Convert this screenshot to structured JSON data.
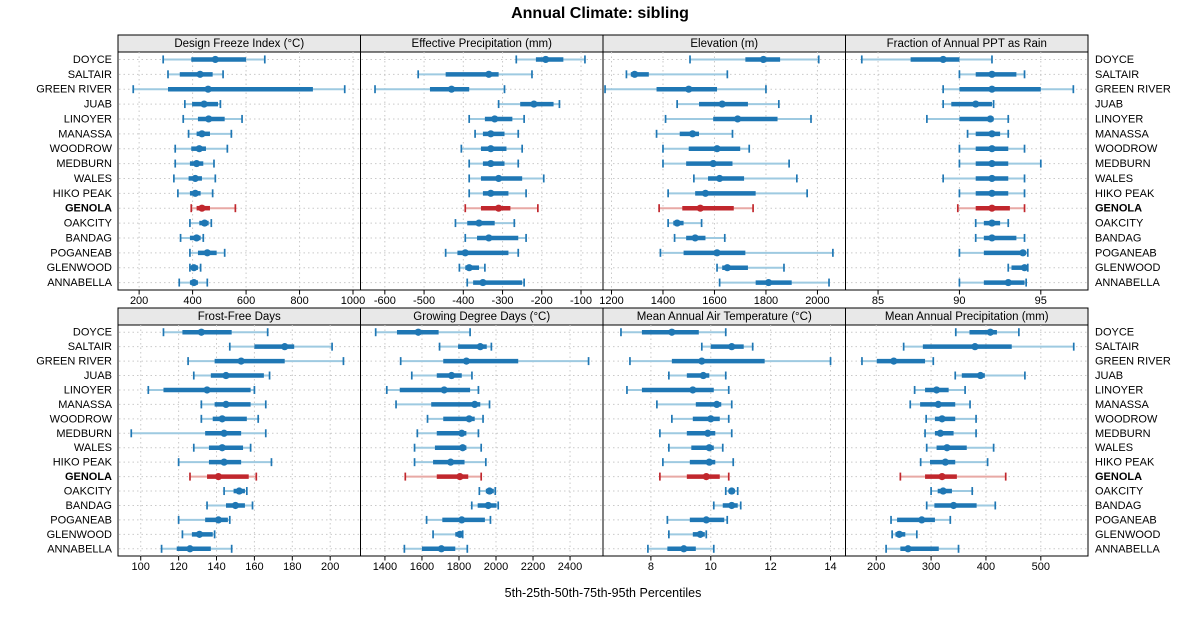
{
  "title": "Annual Climate: sibling",
  "xlabel": "5th-25th-50th-75th-95th Percentiles",
  "percentile_labels": [
    "5th",
    "25th",
    "50th",
    "75th",
    "95th"
  ],
  "sites": [
    "DOYCE",
    "SALTAIR",
    "GREEN RIVER",
    "JUAB",
    "LINOYER",
    "MANASSA",
    "WOODROW",
    "MEDBURN",
    "WALES",
    "HIKO PEAK",
    "GENOLA",
    "OAKCITY",
    "BANDAG",
    "POGANEAB",
    "GLENWOOD",
    "ANNABELLA"
  ],
  "highlight_site": "GENOLA",
  "colors": {
    "blue": "#1f77b4",
    "blue_light": "#9ecae1",
    "red": "#c1272d",
    "red_light": "#e8a9a5",
    "header_bg": "#e8e8e8",
    "panel_border": "#000000",
    "grid": "#c9c9c9",
    "text": "#000000"
  },
  "chart_data": [
    {
      "type": "dotplot-interval",
      "grid_row": 0,
      "grid_col": 0,
      "title": "Design Freeze Index (°C)",
      "xlim": [
        121,
        1028
      ],
      "ticks": [
        200,
        400,
        600,
        800,
        1000
      ],
      "tick_labels": [
        "200",
        "400",
        "600",
        "800",
        "1000"
      ],
      "rows": [
        [
          290,
          395,
          485,
          600,
          670
        ],
        [
          308,
          352,
          428,
          475,
          514
        ],
        [
          178,
          308,
          458,
          850,
          969
        ],
        [
          371,
          398,
          443,
          495,
          504
        ],
        [
          365,
          420,
          460,
          520,
          585
        ],
        [
          385,
          415,
          435,
          465,
          545
        ],
        [
          335,
          395,
          425,
          450,
          530
        ],
        [
          335,
          390,
          415,
          440,
          480
        ],
        [
          330,
          385,
          410,
          435,
          485
        ],
        [
          345,
          390,
          410,
          430,
          475
        ],
        [
          395,
          415,
          435,
          465,
          560
        ],
        [
          390,
          425,
          445,
          460,
          470
        ],
        [
          355,
          390,
          415,
          430,
          440
        ],
        [
          390,
          420,
          455,
          490,
          520
        ],
        [
          390,
          398,
          405,
          420,
          430
        ],
        [
          350,
          390,
          405,
          420,
          455
        ]
      ]
    },
    {
      "type": "dotplot-interval",
      "grid_row": 0,
      "grid_col": 1,
      "title": "Effective Precipitation (mm)",
      "xlim": [
        -662,
        -44
      ],
      "ticks": [
        -600,
        -500,
        -400,
        -300,
        -200,
        -100
      ],
      "tick_labels": [
        "-600",
        "-500",
        "-400",
        "-300",
        "-200",
        "-100"
      ],
      "rows": [
        [
          -265,
          -215,
          -190,
          -145,
          -90
        ],
        [
          -515,
          -445,
          -335,
          -310,
          -225
        ],
        [
          -625,
          -485,
          -430,
          -385,
          -295
        ],
        [
          -310,
          -255,
          -220,
          -170,
          -155
        ],
        [
          -385,
          -345,
          -320,
          -275,
          -245
        ],
        [
          -370,
          -350,
          -330,
          -295,
          -260
        ],
        [
          -405,
          -355,
          -330,
          -290,
          -250
        ],
        [
          -385,
          -350,
          -330,
          -295,
          -260
        ],
        [
          -385,
          -355,
          -310,
          -250,
          -195
        ],
        [
          -385,
          -350,
          -330,
          -285,
          -240
        ],
        [
          -395,
          -355,
          -310,
          -280,
          -210
        ],
        [
          -420,
          -390,
          -360,
          -320,
          -270
        ],
        [
          -395,
          -365,
          -335,
          -260,
          -240
        ],
        [
          -445,
          -415,
          -395,
          -285,
          -260
        ],
        [
          -410,
          -395,
          -385,
          -360,
          -345
        ],
        [
          -390,
          -375,
          -350,
          -250,
          -245
        ]
      ]
    },
    {
      "type": "dotplot-interval",
      "grid_row": 0,
      "grid_col": 2,
      "title": "Elevation (m)",
      "xlim": [
        1167,
        2109
      ],
      "ticks": [
        1200,
        1400,
        1600,
        1800,
        2000
      ],
      "tick_labels": [
        "1200",
        "1400",
        "1600",
        "1800",
        "2000"
      ],
      "rows": [
        [
          1505,
          1720,
          1790,
          1855,
          2005
        ],
        [
          1258,
          1275,
          1290,
          1345,
          1650
        ],
        [
          1175,
          1375,
          1500,
          1610,
          1800
        ],
        [
          1455,
          1540,
          1630,
          1730,
          1850
        ],
        [
          1410,
          1595,
          1690,
          1845,
          1975
        ],
        [
          1375,
          1465,
          1515,
          1540,
          1670
        ],
        [
          1400,
          1500,
          1610,
          1700,
          1735
        ],
        [
          1400,
          1490,
          1595,
          1670,
          1890
        ],
        [
          1520,
          1575,
          1620,
          1715,
          1920
        ],
        [
          1420,
          1525,
          1565,
          1760,
          1960
        ],
        [
          1385,
          1475,
          1545,
          1675,
          1750
        ],
        [
          1420,
          1440,
          1455,
          1480,
          1550
        ],
        [
          1445,
          1490,
          1525,
          1565,
          1640
        ],
        [
          1390,
          1480,
          1610,
          1720,
          2060
        ],
        [
          1610,
          1630,
          1650,
          1730,
          1870
        ],
        [
          1620,
          1760,
          1810,
          1900,
          2045
        ]
      ]
    },
    {
      "type": "dotplot-interval",
      "grid_row": 0,
      "grid_col": 3,
      "title": "Fraction of Annual PPT as Rain",
      "xlim": [
        83,
        97.9
      ],
      "ticks": [
        85,
        90,
        95
      ],
      "tick_labels": [
        "85",
        "90",
        "95"
      ],
      "rows": [
        [
          84,
          87,
          89,
          90,
          92
        ],
        [
          90,
          91,
          92,
          93.5,
          94
        ],
        [
          89,
          90,
          92,
          95,
          97
        ],
        [
          89,
          89.5,
          91,
          92,
          92.1
        ],
        [
          88,
          90,
          91.9,
          92.1,
          93
        ],
        [
          90.5,
          91,
          92,
          92.5,
          93
        ],
        [
          90,
          91,
          92,
          93,
          94
        ],
        [
          90,
          91,
          92,
          93,
          95
        ],
        [
          89,
          91,
          92,
          93,
          94
        ],
        [
          90,
          91,
          92,
          93,
          94
        ],
        [
          89.9,
          91,
          92,
          93.1,
          94
        ],
        [
          91,
          91.5,
          92,
          92.5,
          93
        ],
        [
          91,
          91.5,
          92,
          93.5,
          94
        ],
        [
          90,
          91.5,
          93.9,
          94,
          94.2
        ],
        [
          93,
          93.2,
          94,
          94.1,
          94.2
        ],
        [
          90,
          91.5,
          93,
          94,
          94.1
        ]
      ]
    },
    {
      "type": "dotplot-interval",
      "grid_row": 1,
      "grid_col": 0,
      "title": "Frost-Free Days",
      "xlim": [
        88,
        216
      ],
      "ticks": [
        100,
        120,
        140,
        160,
        180,
        200
      ],
      "tick_labels": [
        "100",
        "120",
        "140",
        "160",
        "180",
        "200"
      ],
      "rows": [
        [
          112,
          122,
          132,
          148,
          167
        ],
        [
          147,
          160,
          176,
          181,
          201
        ],
        [
          125,
          139,
          153,
          176,
          207
        ],
        [
          128,
          137,
          145,
          165,
          168
        ],
        [
          104,
          112,
          135,
          158,
          160
        ],
        [
          132,
          139,
          145,
          158,
          166
        ],
        [
          132,
          138,
          143,
          156,
          162
        ],
        [
          95,
          134,
          144,
          153,
          166
        ],
        [
          128,
          136,
          143,
          154,
          158
        ],
        [
          120,
          136,
          144,
          153,
          169
        ],
        [
          126,
          135,
          141,
          157,
          161
        ],
        [
          144,
          149,
          152,
          155,
          156
        ],
        [
          135,
          145,
          150,
          155,
          159
        ],
        [
          120,
          134,
          141,
          146,
          147
        ],
        [
          122,
          127,
          131,
          138,
          139
        ],
        [
          111,
          119,
          126,
          137,
          148
        ]
      ]
    },
    {
      "type": "dotplot-interval",
      "grid_row": 1,
      "grid_col": 1,
      "title": "Growing Degree Days (°C)",
      "xlim": [
        1268,
        2578
      ],
      "ticks": [
        1400,
        1600,
        1800,
        2000,
        2200,
        2400
      ],
      "tick_labels": [
        "1400",
        "1600",
        "1800",
        "2000",
        "2200",
        "2400"
      ],
      "rows": [
        [
          1350,
          1465,
          1580,
          1690,
          1860
        ],
        [
          1695,
          1795,
          1915,
          1950,
          1975
        ],
        [
          1485,
          1715,
          1840,
          2120,
          2500
        ],
        [
          1545,
          1680,
          1760,
          1815,
          1870
        ],
        [
          1410,
          1480,
          1720,
          1860,
          1905
        ],
        [
          1460,
          1650,
          1885,
          1915,
          1965
        ],
        [
          1630,
          1715,
          1855,
          1885,
          1930
        ],
        [
          1575,
          1680,
          1815,
          1840,
          1905
        ],
        [
          1560,
          1670,
          1820,
          1840,
          1920
        ],
        [
          1560,
          1660,
          1755,
          1830,
          1945
        ],
        [
          1510,
          1680,
          1805,
          1850,
          1920
        ],
        [
          1910,
          1945,
          1965,
          1988,
          1996
        ],
        [
          1869,
          1901,
          1958,
          2003,
          2012
        ],
        [
          1625,
          1710,
          1815,
          1940,
          1970
        ],
        [
          1660,
          1780,
          1805,
          1815,
          1820
        ],
        [
          1505,
          1600,
          1705,
          1780,
          1845
        ]
      ]
    },
    {
      "type": "dotplot-interval",
      "grid_row": 1,
      "grid_col": 2,
      "title": "Mean Annual Air Temperature (°C)",
      "xlim": [
        6.4,
        14.5
      ],
      "ticks": [
        8,
        10,
        12,
        14
      ],
      "tick_labels": [
        "8",
        "10",
        "12",
        "14"
      ],
      "rows": [
        [
          7.0,
          7.7,
          8.7,
          9.6,
          10.5
        ],
        [
          9.7,
          10.0,
          10.7,
          11.1,
          11.4
        ],
        [
          7.3,
          8.7,
          9.7,
          11.8,
          14.0
        ],
        [
          8.6,
          9.2,
          9.75,
          9.95,
          10.5
        ],
        [
          7.2,
          7.7,
          9.4,
          10.1,
          10.6
        ],
        [
          8.2,
          9.5,
          10.2,
          10.35,
          10.7
        ],
        [
          8.7,
          9.4,
          10.0,
          10.3,
          10.6
        ],
        [
          8.3,
          9.2,
          9.9,
          10.15,
          10.7
        ],
        [
          8.6,
          9.35,
          9.95,
          10.1,
          10.4
        ],
        [
          8.4,
          9.3,
          9.95,
          10.15,
          10.75
        ],
        [
          8.3,
          9.2,
          9.85,
          10.3,
          10.6
        ],
        [
          10.5,
          10.6,
          10.7,
          10.8,
          10.9
        ],
        [
          10.1,
          10.4,
          10.7,
          10.9,
          11.0
        ],
        [
          8.55,
          9.3,
          9.85,
          10.45,
          10.55
        ],
        [
          8.6,
          9.4,
          9.65,
          9.8,
          9.85
        ],
        [
          7.9,
          8.55,
          9.1,
          9.5,
          10.1
        ]
      ]
    },
    {
      "type": "dotplot-interval",
      "grid_row": 1,
      "grid_col": 3,
      "title": "Mean Annual Precipitation (mm)",
      "xlim": [
        144,
        586
      ],
      "ticks": [
        200,
        300,
        400,
        500
      ],
      "tick_labels": [
        "200",
        "300",
        "400",
        "500"
      ],
      "rows": [
        [
          345,
          370,
          408,
          420,
          460
        ],
        [
          250,
          285,
          380,
          447,
          560
        ],
        [
          174,
          201,
          232,
          289,
          304
        ],
        [
          344,
          356,
          390,
          398,
          471
        ],
        [
          270,
          289,
          310,
          332,
          362
        ],
        [
          262,
          280,
          313,
          344,
          371
        ],
        [
          291,
          307,
          320,
          344,
          382
        ],
        [
          289,
          307,
          317,
          341,
          382
        ],
        [
          292,
          310,
          329,
          365,
          414
        ],
        [
          281,
          298,
          326,
          344,
          403
        ],
        [
          244,
          289,
          320,
          347,
          436
        ],
        [
          300,
          312,
          322,
          338,
          375
        ],
        [
          292,
          306,
          341,
          383,
          417
        ],
        [
          227,
          238,
          283,
          307,
          335
        ],
        [
          229,
          235,
          242,
          253,
          274
        ],
        [
          218,
          244,
          258,
          314,
          350
        ]
      ]
    }
  ]
}
